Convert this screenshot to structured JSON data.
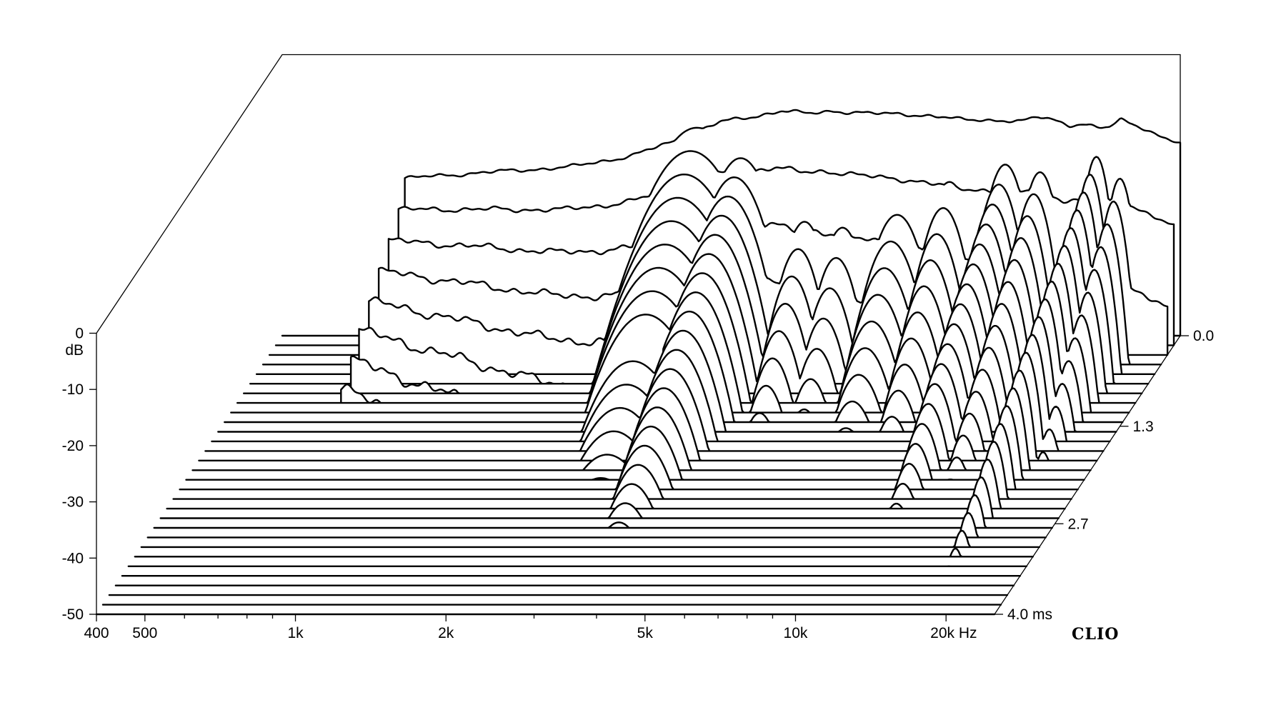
{
  "chart_data": {
    "type": "waterfall",
    "x_scale": "log",
    "xlim": [
      400,
      25000
    ],
    "ylim": [
      -50,
      0
    ],
    "time_range_ms": [
      0.0,
      4.0
    ],
    "y_unit": "dB",
    "x_unit": "Hz",
    "z_unit": "ms",
    "x_ticks": [
      {
        "value": 400,
        "label": "400"
      },
      {
        "value": 500,
        "label": "500"
      },
      {
        "value": 1000,
        "label": "1k"
      },
      {
        "value": 2000,
        "label": "2k"
      },
      {
        "value": 5000,
        "label": "5k"
      },
      {
        "value": 10000,
        "label": "10k"
      },
      {
        "value": 20000,
        "label": "20k Hz"
      }
    ],
    "x_minor_ticks": [
      600,
      700,
      800,
      900,
      3000,
      4000,
      6000,
      7000,
      8000,
      9000
    ],
    "y_ticks": [
      {
        "value": 0,
        "label": "0"
      },
      {
        "value": -10,
        "label": "-10"
      },
      {
        "value": -20,
        "label": "-20"
      },
      {
        "value": -30,
        "label": "-30"
      },
      {
        "value": -40,
        "label": "-40"
      },
      {
        "value": -50,
        "label": "-50"
      }
    ],
    "y_unit_label": "dB",
    "z_ticks": [
      {
        "value": 0.0,
        "label": "0.0"
      },
      {
        "value": 1.3,
        "label": "1.3"
      },
      {
        "value": 2.7,
        "label": "2.7"
      },
      {
        "value": 4.0,
        "label": "4.0  ms"
      }
    ],
    "brand": "CLIO",
    "num_slices": 30,
    "initial_response": {
      "freq": [
        700,
        1000,
        1500,
        2000,
        2500,
        3000,
        3500,
        4000,
        4500,
        5000,
        6000,
        7000,
        8000,
        9000,
        10000,
        12000,
        13000,
        14000,
        15000,
        16000,
        17000,
        18000,
        19000,
        20000,
        22000,
        25000
      ],
      "db": [
        -22,
        -21,
        -20,
        -18,
        -15,
        -12,
        -11,
        -10,
        -10.5,
        -10,
        -10.5,
        -10.5,
        -11,
        -11.5,
        -11.5,
        -12,
        -11,
        -11.5,
        -12.5,
        -12.5,
        -13,
        -13,
        -11.5,
        -12,
        -14,
        -16
      ]
    },
    "low_frequency_window_hz": [
      [
        700,
        0.0
      ],
      [
        700,
        0.14
      ],
      [
        690,
        0.27
      ],
      [
        680,
        0.41
      ],
      [
        670,
        0.55
      ],
      [
        660,
        0.69
      ],
      [
        650,
        0.83
      ],
      [
        640,
        0.97
      ],
      [
        630,
        1.1
      ]
    ],
    "resonances": [
      {
        "freq_hz": 2700,
        "level_db": -13,
        "decay_ms": 2.2,
        "width_oct": 0.2
      },
      {
        "freq_hz": 3400,
        "level_db": -15,
        "decay_ms": 3.0,
        "width_oct": 0.14
      },
      {
        "freq_hz": 4700,
        "level_db": -20,
        "decay_ms": 1.4,
        "width_oct": 0.1
      },
      {
        "freq_hz": 5600,
        "level_db": -20,
        "decay_ms": 1.2,
        "width_oct": 0.1
      },
      {
        "freq_hz": 7200,
        "level_db": -19,
        "decay_ms": 1.5,
        "width_oct": 0.12
      },
      {
        "freq_hz": 8900,
        "level_db": -18,
        "decay_ms": 1.6,
        "width_oct": 0.1
      },
      {
        "freq_hz": 11500,
        "level_db": -16,
        "decay_ms": 2.7,
        "width_oct": 0.09
      },
      {
        "freq_hz": 13500,
        "level_db": -17,
        "decay_ms": 2.2,
        "width_oct": 0.08
      },
      {
        "freq_hz": 17500,
        "level_db": -15,
        "decay_ms": 3.5,
        "width_oct": 0.06
      },
      {
        "freq_hz": 19500,
        "level_db": -18,
        "decay_ms": 2.0,
        "width_oct": 0.06
      }
    ]
  }
}
